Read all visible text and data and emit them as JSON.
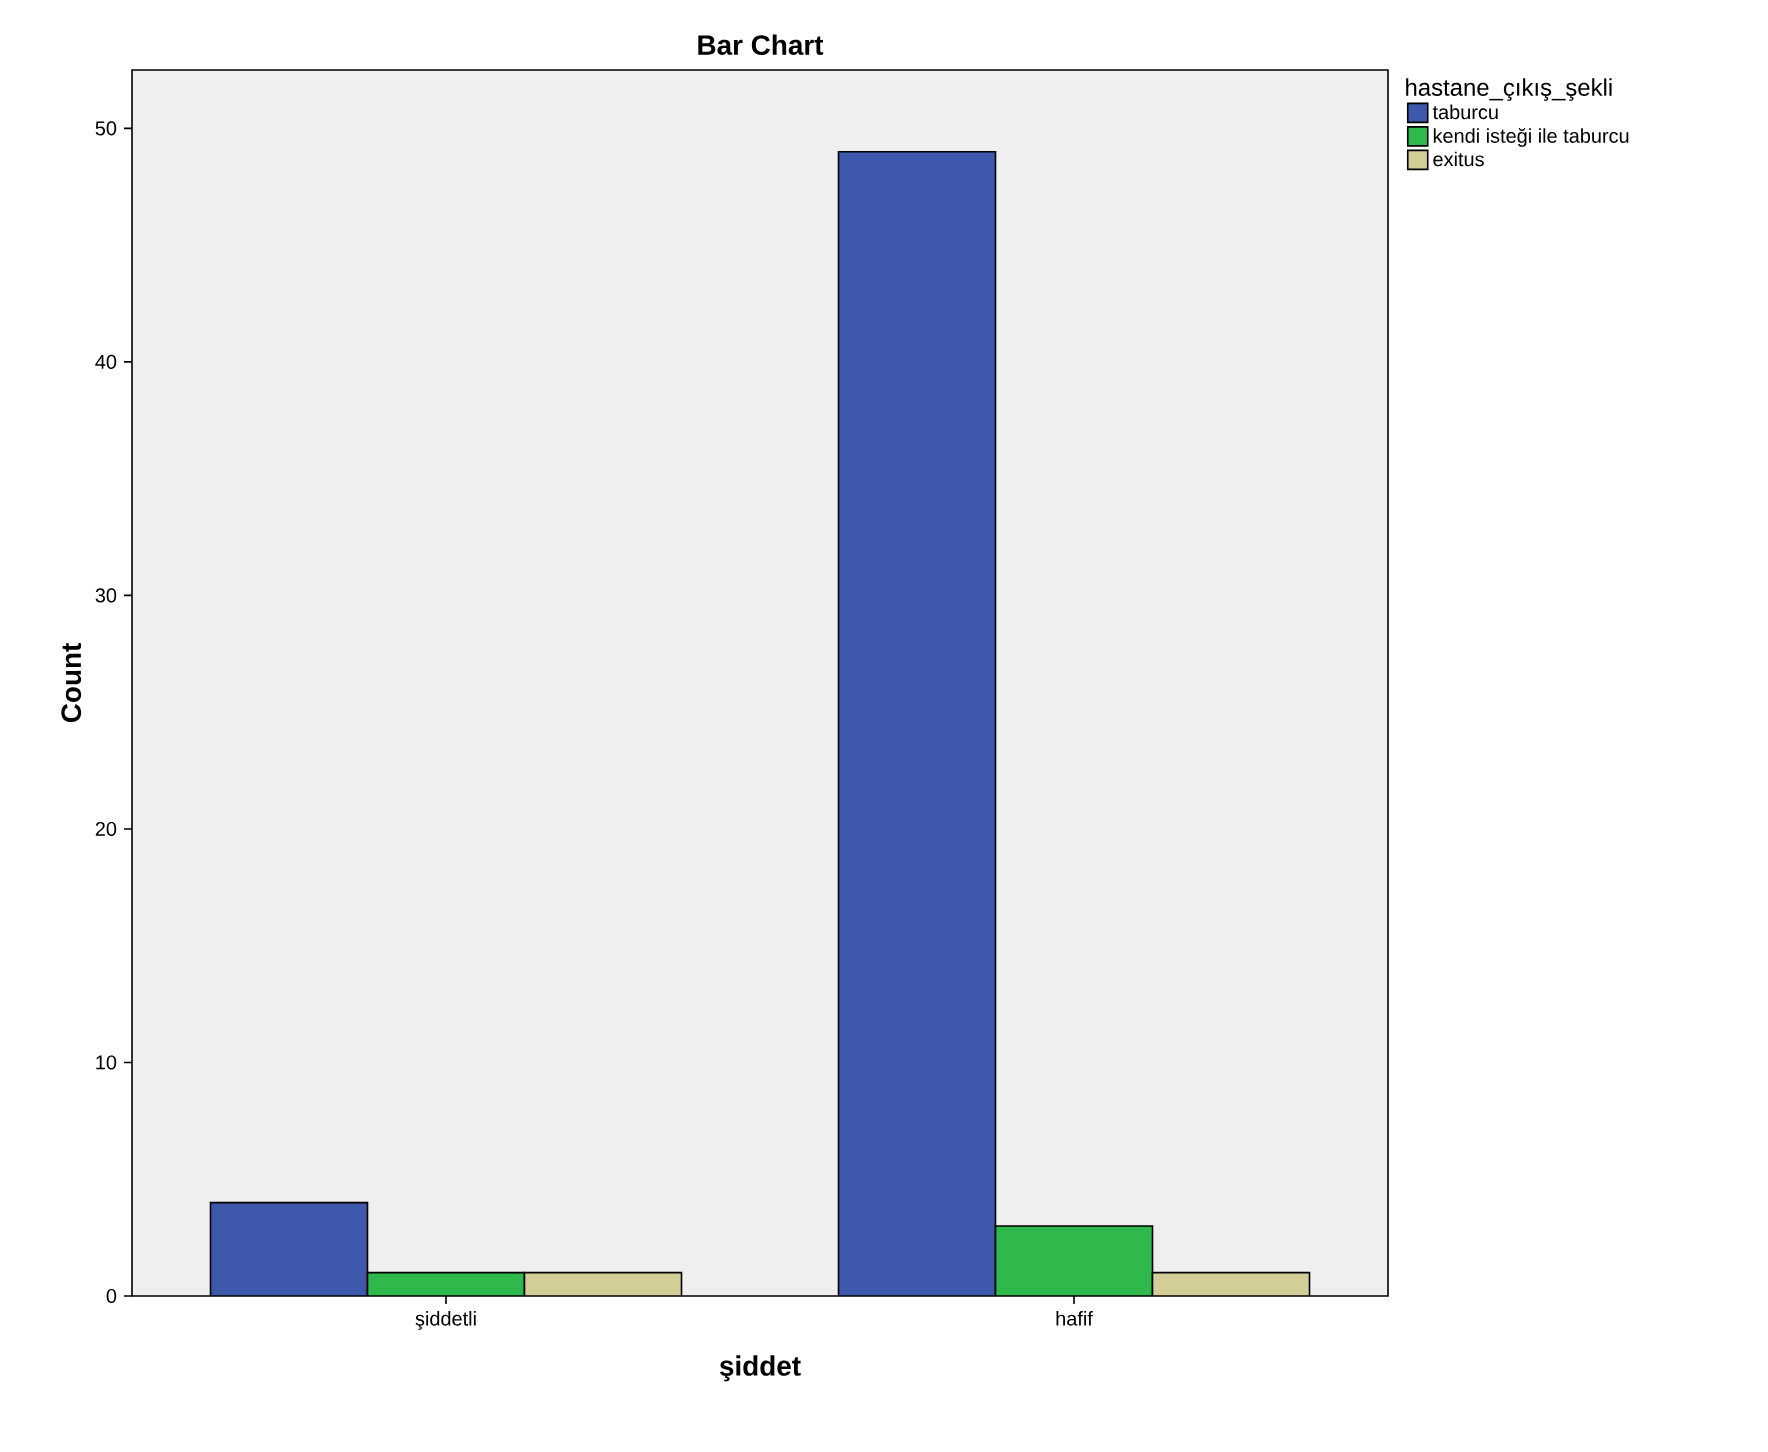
{
  "chart_data": {
    "type": "bar",
    "title": "Bar Chart",
    "xlabel": "şiddet",
    "ylabel": "Count",
    "legend_title": "hastane_çıkış_şekli",
    "categories": [
      "şiddetli",
      "hafif"
    ],
    "series": [
      {
        "name": "taburcu",
        "color": "#3e58ac",
        "values": [
          4,
          49
        ]
      },
      {
        "name": "kendi isteği ile taburcu",
        "color": "#2fb84b",
        "values": [
          1,
          3
        ]
      },
      {
        "name": "exitus",
        "color": "#d3ce98",
        "values": [
          1,
          1
        ]
      }
    ],
    "ylim": [
      0,
      52.5
    ],
    "yticks": [
      0,
      10,
      20,
      30,
      40,
      50
    ],
    "grid": false,
    "legend": "top right"
  }
}
